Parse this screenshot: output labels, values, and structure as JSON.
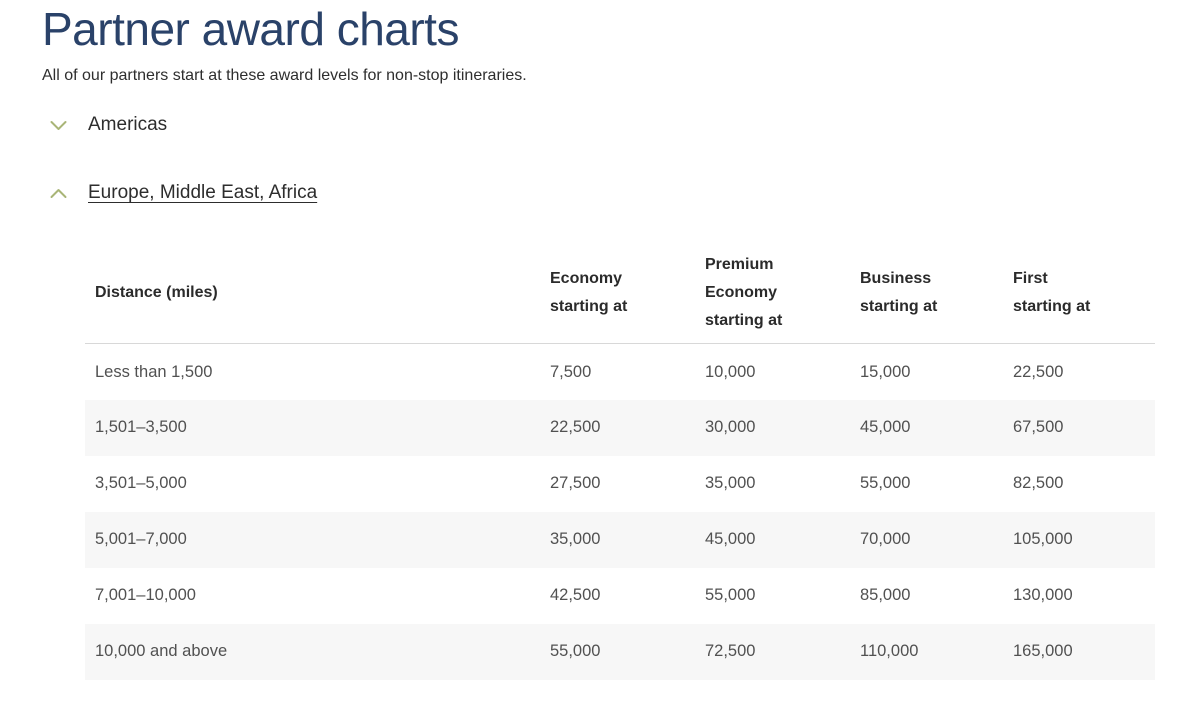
{
  "page": {
    "title": "Partner award charts",
    "subtitle": "All of our partners start at these award levels for non-stop itineraries."
  },
  "accordion": {
    "items": [
      {
        "label": "Americas",
        "state": "collapsed"
      },
      {
        "label": "Europe, Middle East, Africa",
        "state": "expanded"
      }
    ]
  },
  "award_table": {
    "columns": [
      "Distance (miles)",
      "Economy starting at",
      "Premium Economy starting at",
      "Business starting at",
      "First starting at"
    ],
    "rows": [
      [
        "Less than 1,500",
        "7,500",
        "10,000",
        "15,000",
        "22,500"
      ],
      [
        "1,501–3,500",
        "22,500",
        "30,000",
        "45,000",
        "67,500"
      ],
      [
        "3,501–5,000",
        "27,500",
        "35,000",
        "55,000",
        "82,500"
      ],
      [
        "5,001–7,000",
        "35,000",
        "45,000",
        "70,000",
        "105,000"
      ],
      [
        "7,001–10,000",
        "42,500",
        "55,000",
        "85,000",
        "130,000"
      ],
      [
        "10,000 and above",
        "55,000",
        "72,500",
        "110,000",
        "165,000"
      ]
    ]
  },
  "colors": {
    "title_navy": "#2a4269",
    "chevron_sage": "#a9b577",
    "row_stripe": "#f7f7f7",
    "header_border": "#d8d8d8",
    "body_text": "#2e2e2e",
    "cell_text": "#515151"
  }
}
